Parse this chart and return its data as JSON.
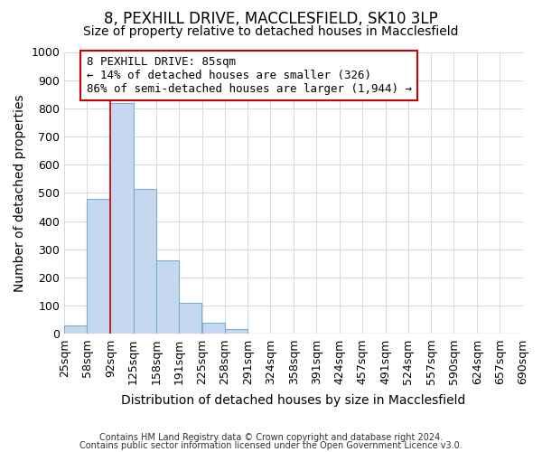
{
  "title": "8, PEXHILL DRIVE, MACCLESFIELD, SK10 3LP",
  "subtitle": "Size of property relative to detached houses in Macclesfield",
  "xlabel": "Distribution of detached houses by size in Macclesfield",
  "ylabel": "Number of detached properties",
  "bar_edges": [
    25,
    58,
    92,
    125,
    158,
    191,
    225,
    258,
    291,
    324,
    358,
    391,
    424,
    457,
    491,
    524,
    557,
    590,
    624,
    657,
    690
  ],
  "bar_values": [
    30,
    480,
    820,
    515,
    260,
    110,
    40,
    18,
    0,
    0,
    0,
    0,
    0,
    0,
    0,
    0,
    0,
    0,
    0,
    0
  ],
  "bar_color": "#c5d8f0",
  "bar_edge_color": "#7aadd4",
  "background_color": "#ffffff",
  "grid_color": "#d0dcea",
  "property_line_x": 92,
  "property_line_color": "#cc0000",
  "annotation_text": "8 PEXHILL DRIVE: 85sqm\n← 14% of detached houses are smaller (326)\n86% of semi-detached houses are larger (1,944) →",
  "annotation_box_color": "#ffffff",
  "annotation_box_edgecolor": "#cc0000",
  "ylim": [
    0,
    1000
  ],
  "xlim": [
    25,
    690
  ],
  "yticks": [
    0,
    100,
    200,
    300,
    400,
    500,
    600,
    700,
    800,
    900,
    1000
  ],
  "title_fontsize": 12,
  "subtitle_fontsize": 10,
  "axis_label_fontsize": 10,
  "tick_fontsize": 9,
  "footer_line1": "Contains HM Land Registry data © Crown copyright and database right 2024.",
  "footer_line2": "Contains public sector information licensed under the Open Government Licence v3.0."
}
